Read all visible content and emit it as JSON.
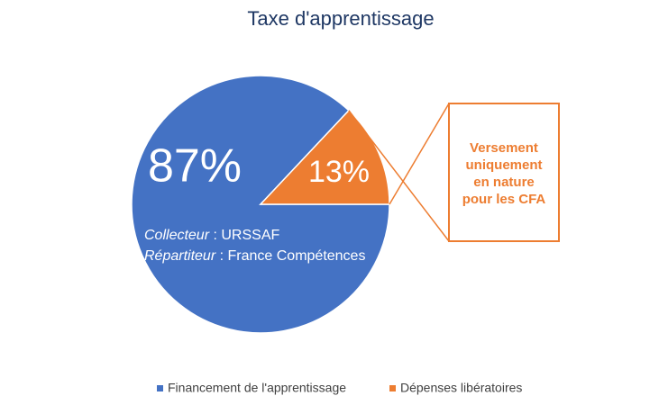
{
  "chart_data": {
    "type": "pie",
    "title": "Taxe d'apprentissage",
    "categories": [
      "Financement de l'apprentissage",
      "Dépenses libératoires"
    ],
    "values": [
      87,
      13
    ],
    "value_labels": [
      "87%",
      "13%"
    ],
    "colors": [
      "#4472c4",
      "#ed7d31"
    ],
    "annotations": [
      {
        "label": "Collecteur",
        "text": " : URSSAF"
      },
      {
        "label": "Répartiteur",
        "text": " : France Compétences"
      }
    ],
    "callout": [
      "Versement",
      "uniquement",
      "en nature",
      "pour les CFA"
    ],
    "legend": "bottom"
  }
}
